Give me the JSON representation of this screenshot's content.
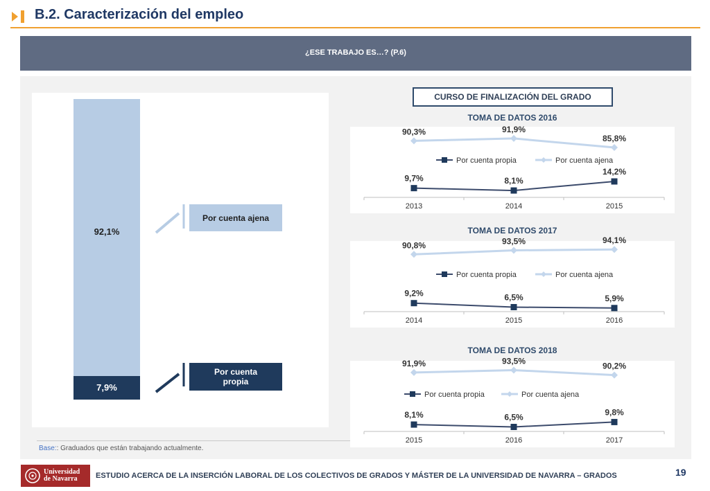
{
  "page": {
    "title": "B.2. Caracterización del empleo",
    "header": "¿ESE TRABAJO ES…? (P.6)",
    "base_prefix": "Base:",
    "base_text": ": Graduados que están trabajando actualmente.",
    "footer": "ESTUDIO ACERCA DE LA INSERCIÓN LABORAL DE LOS COLECTIVOS DE GRADOS Y MÁSTER DE LA UNIVERSIDAD DE NAVARRA – GRADOS",
    "page_number": "19",
    "logo_line1": "Universidad",
    "logo_line2": "de Navarra",
    "right_title": "CURSO DE FINALIZACIÓN DEL GRADO"
  },
  "colors": {
    "ajena": "#b7cce4",
    "propia": "#1f3a5c",
    "propia_line": "#3b4a6b",
    "ajena_line": "#c3d6ec",
    "title": "#1f3864",
    "accent": "#f0a030"
  },
  "chart_data": [
    {
      "type": "bar",
      "stacked": true,
      "series": [
        {
          "name": "Por cuenta propia",
          "values": [
            7.9
          ],
          "label": "7,9%"
        },
        {
          "name": "Por cuenta ajena",
          "values": [
            92.1
          ],
          "label": "92,1%"
        }
      ],
      "ylim": [
        0,
        100
      ],
      "labels": {
        "ajena": "Por cuenta ajena",
        "propia": "Por cuenta propia"
      }
    },
    {
      "type": "line",
      "title": "TOMA DE DATOS 2016",
      "x": [
        "2013",
        "2014",
        "2015"
      ],
      "series": [
        {
          "name": "Por cuenta propia",
          "values": [
            9.7,
            8.1,
            14.2
          ],
          "labels": [
            "9,7%",
            "8,1%",
            "14,2%"
          ]
        },
        {
          "name": "Por cuenta ajena",
          "values": [
            90.3,
            91.9,
            85.8
          ],
          "labels": [
            "90,3%",
            "91,9%",
            "85,8%"
          ]
        }
      ],
      "legend": "center"
    },
    {
      "type": "line",
      "title": "TOMA DE DATOS 2017",
      "x": [
        "2014",
        "2015",
        "2016"
      ],
      "series": [
        {
          "name": "Por cuenta propia",
          "values": [
            9.2,
            6.5,
            5.9
          ],
          "labels": [
            "9,2%",
            "6,5%",
            "5,9%"
          ]
        },
        {
          "name": "Por cuenta ajena",
          "values": [
            90.8,
            93.5,
            94.1
          ],
          "labels": [
            "90,8%",
            "93,5%",
            "94,1%"
          ]
        }
      ],
      "legend": "center"
    },
    {
      "type": "line",
      "title": "TOMA DE DATOS 2018",
      "x": [
        "2015",
        "2016",
        "2017"
      ],
      "series": [
        {
          "name": "Por cuenta propia",
          "values": [
            8.1,
            6.5,
            9.8
          ],
          "labels": [
            "8,1%",
            "6,5%",
            "9,8%"
          ]
        },
        {
          "name": "Por cuenta ajena",
          "values": [
            91.9,
            93.5,
            90.2
          ],
          "labels": [
            "91,9%",
            "93,5%",
            "90,2%"
          ]
        }
      ],
      "legend": "center"
    }
  ]
}
